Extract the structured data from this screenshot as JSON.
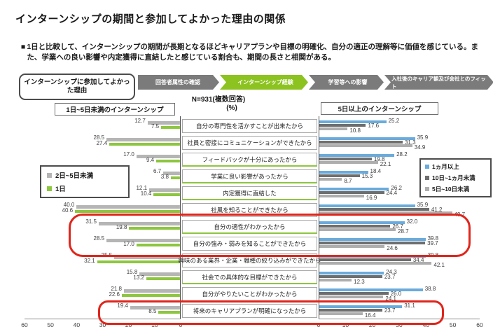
{
  "header": {
    "title": "インターンシップの期間と参加してよかった理由の関係",
    "bullet_marker": "■",
    "summary": "1日と比較して、インターンシップの期間が長期となるほどキャリアプランや目標の明確化、自分の適正の理解等に価値を感じている。また、学業への良い影響や内定獲得に直結したと感じている割合も、期間の長さと相関がある。"
  },
  "flow": {
    "reason_box": "インターンシップに参加してよかった理由",
    "tabs": [
      {
        "label": "回答者属性の確認",
        "active": false
      },
      {
        "label": "インターンシップ経験",
        "active": true
      },
      {
        "label": "学習等への影響",
        "active": false
      },
      {
        "label": "入社後のキャリア観及び会社とのフィット",
        "active": false
      }
    ]
  },
  "chart_data": {
    "type": "bar",
    "orientation": "horizontal-mirrored",
    "n_label": "N=931(複数回答)",
    "unit_label": "(%)",
    "categories": [
      "自分の専門性を活かすことが出来たから",
      "社員と密接にコミュニケーションができたから",
      "フィードバックが十分にあったから",
      "学業に良い影響があったから",
      "内定獲得に直結した",
      "社風を知ることができたから",
      "自分の適性がわかったから",
      "自分の強み・弱みを知ることができたから",
      "興味のある業界・企業・職種の絞り込みができたから",
      "社会での具体的な目標ができたから",
      "自分がやりたいことがわかったから",
      "将来のキャリアプランが明確になったから"
    ],
    "left_chart": {
      "title": "1日~5日未満のインターンシップ",
      "direction": "right-to-left",
      "xlim": [
        0,
        60
      ],
      "axis_ticks": [
        60,
        50,
        40,
        30,
        20,
        10,
        0
      ],
      "series": [
        {
          "name": "2日~5日未満",
          "color": "#b5b5b5",
          "values": [
            12.7,
            28.5,
            17.0,
            6.7,
            12.1,
            40.0,
            31.5,
            28.5,
            25.5,
            15.8,
            21.8,
            19.4
          ]
        },
        {
          "name": "1日",
          "color": "#8dc63f",
          "values": [
            7.5,
            27.4,
            9.4,
            3.8,
            10.4,
            40.6,
            19.8,
            17.0,
            32.1,
            13.2,
            22.6,
            8.5
          ]
        }
      ]
    },
    "right_chart": {
      "title": "5日以上のインターンシップ",
      "direction": "left-to-right",
      "xlim": [
        0,
        60
      ],
      "axis_ticks": [
        0,
        10,
        20,
        30,
        40,
        50,
        60
      ],
      "series": [
        {
          "name": "1ヵ月以上",
          "color": "#6aabdc",
          "values": [
            25.2,
            35.9,
            28.2,
            18.4,
            26.2,
            35.9,
            32.0,
            39.8,
            39.8,
            24.3,
            38.8,
            31.1
          ]
        },
        {
          "name": "10日~1ヵ月未満",
          "color": "#6e6e6e",
          "values": [
            17.6,
            31.3,
            19.8,
            15.3,
            24.4,
            41.2,
            26.7,
            39.7,
            34.4,
            23.7,
            26.0,
            23.7
          ]
        },
        {
          "name": "5日~10日未満",
          "color": "#aeaeae",
          "values": [
            10.8,
            34.9,
            22.1,
            8.7,
            16.9,
            49.7,
            28.7,
            24.6,
            42.1,
            12.3,
            24.1,
            16.4
          ]
        }
      ]
    },
    "highlighted_category_indexes": [
      6,
      7,
      11
    ],
    "highlight_color": "#e0251b",
    "green_separator_rows": [
      2,
      3,
      4,
      6,
      9
    ],
    "legend_position": {
      "left_chart": "inside-left",
      "right_chart": "inside-right"
    },
    "grid": false
  }
}
